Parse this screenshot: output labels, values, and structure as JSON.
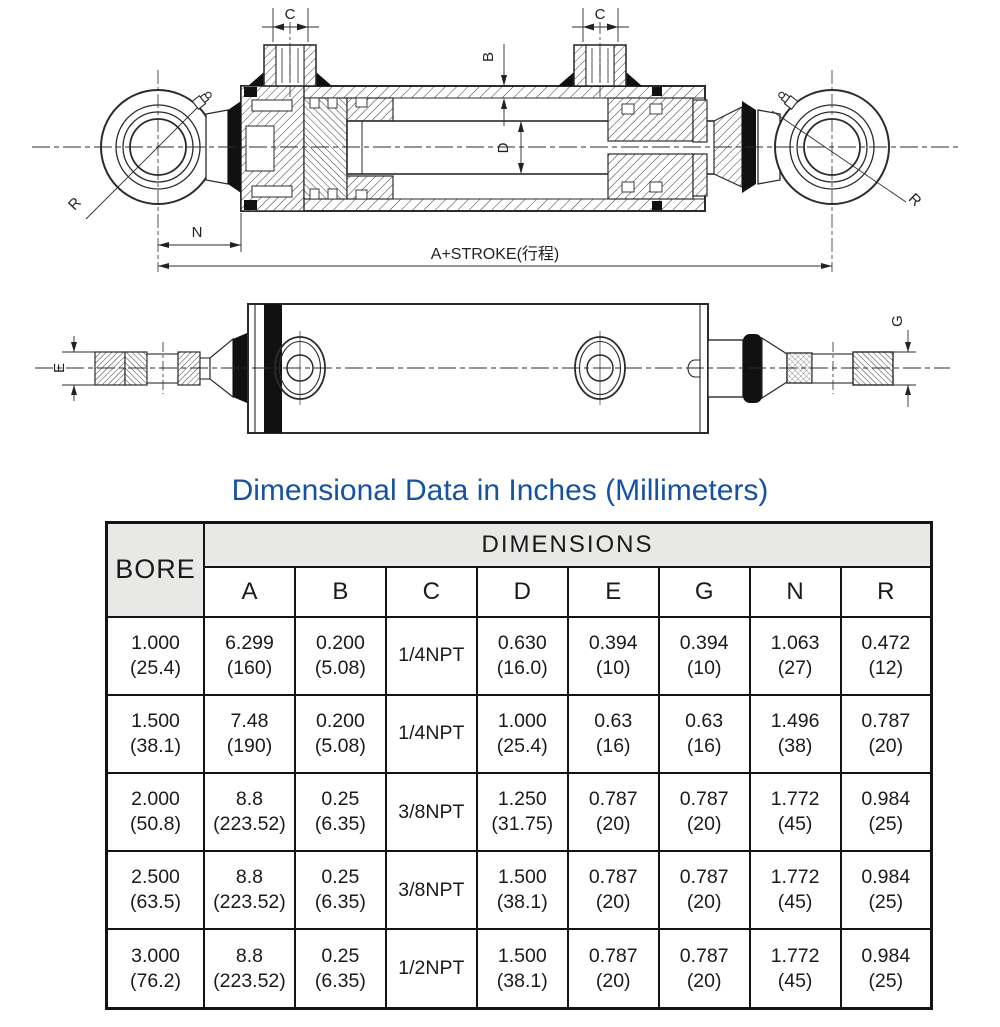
{
  "title": {
    "text": "Dimensional Data in Inches (Millimeters)",
    "color": "#1652a3"
  },
  "drawing": {
    "labels": {
      "c": "C",
      "b": "B",
      "d": "D",
      "r": "R",
      "n": "N",
      "e": "E",
      "g": "G",
      "stroke_dim": "A+STROKE(行程)"
    },
    "line_color": "#2b2b2b",
    "seal_color": "#111111"
  },
  "table": {
    "bore_header": "BORE",
    "dimensions_header": "DIMENSIONS",
    "columns": [
      "A",
      "B",
      "C",
      "D",
      "E",
      "G",
      "N",
      "R"
    ],
    "rows": [
      {
        "bore": [
          "1.000",
          "(25.4)"
        ],
        "cells": [
          [
            "6.299",
            "(160)"
          ],
          [
            "0.200",
            "(5.08)"
          ],
          [
            "1/4NPT"
          ],
          [
            "0.630",
            "(16.0)"
          ],
          [
            "0.394",
            "(10)"
          ],
          [
            "0.394",
            "(10)"
          ],
          [
            "1.063",
            "(27)"
          ],
          [
            "0.472",
            "(12)"
          ]
        ]
      },
      {
        "bore": [
          "1.500",
          "(38.1)"
        ],
        "cells": [
          [
            "7.48",
            "(190)"
          ],
          [
            "0.200",
            "(5.08)"
          ],
          [
            "1/4NPT"
          ],
          [
            "1.000",
            "(25.4)"
          ],
          [
            "0.63",
            "(16)"
          ],
          [
            "0.63",
            "(16)"
          ],
          [
            "1.496",
            "(38)"
          ],
          [
            "0.787",
            "(20)"
          ]
        ]
      },
      {
        "bore": [
          "2.000",
          "(50.8)"
        ],
        "cells": [
          [
            "8.8",
            "(223.52)"
          ],
          [
            "0.25",
            "(6.35)"
          ],
          [
            "3/8NPT"
          ],
          [
            "1.250",
            "(31.75)"
          ],
          [
            "0.787",
            "(20)"
          ],
          [
            "0.787",
            "(20)"
          ],
          [
            "1.772",
            "(45)"
          ],
          [
            "0.984",
            "(25)"
          ]
        ]
      },
      {
        "bore": [
          "2.500",
          "(63.5)"
        ],
        "cells": [
          [
            "8.8",
            "(223.52)"
          ],
          [
            "0.25",
            "(6.35)"
          ],
          [
            "3/8NPT"
          ],
          [
            "1.500",
            "(38.1)"
          ],
          [
            "0.787",
            "(20)"
          ],
          [
            "0.787",
            "(20)"
          ],
          [
            "1.772",
            "(45)"
          ],
          [
            "0.984",
            "(25)"
          ]
        ]
      },
      {
        "bore": [
          "3.000",
          "(76.2)"
        ],
        "cells": [
          [
            "8.8",
            "(223.52)"
          ],
          [
            "0.25",
            "(6.35)"
          ],
          [
            "1/2NPT"
          ],
          [
            "1.500",
            "(38.1)"
          ],
          [
            "0.787",
            "(20)"
          ],
          [
            "0.787",
            "(20)"
          ],
          [
            "1.772",
            "(45)"
          ],
          [
            "0.984",
            "(25)"
          ]
        ]
      }
    ]
  }
}
